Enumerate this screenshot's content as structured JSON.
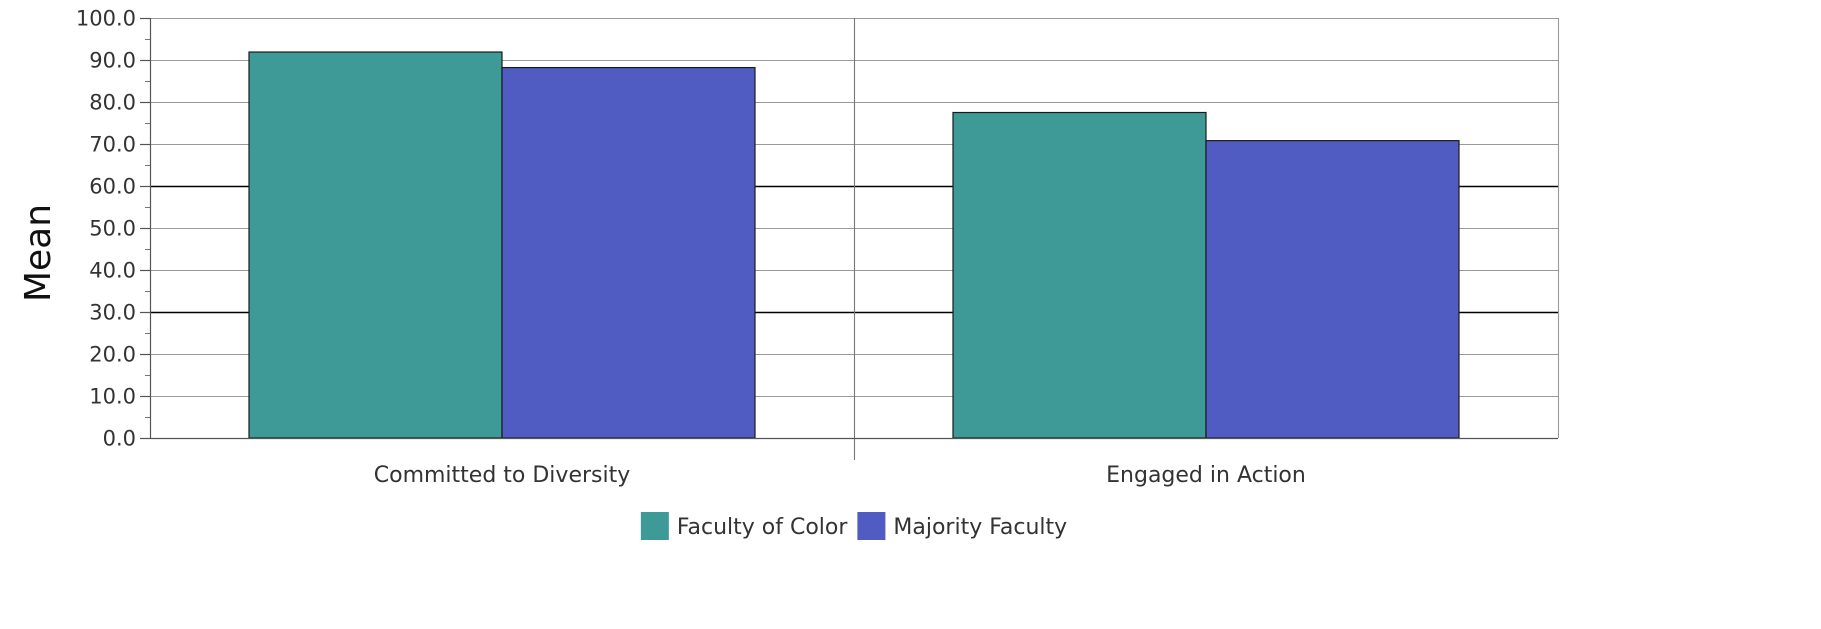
{
  "chart_data": {
    "type": "bar",
    "title": "",
    "xlabel": "",
    "ylabel": "Mean",
    "ylim": [
      0,
      100
    ],
    "y_tick_step": 10,
    "y_tick_decimals": 1,
    "categories": [
      "Committed to Diversity",
      "Engaged in Action"
    ],
    "series": [
      {
        "name": "Faculty of Color",
        "color": "#3d9a96",
        "values": [
          91.9,
          77.5
        ]
      },
      {
        "name": "Majority Faculty",
        "color": "#505cc2",
        "values": [
          88.2,
          70.8
        ]
      }
    ],
    "grid": true,
    "legend": "bottom"
  }
}
